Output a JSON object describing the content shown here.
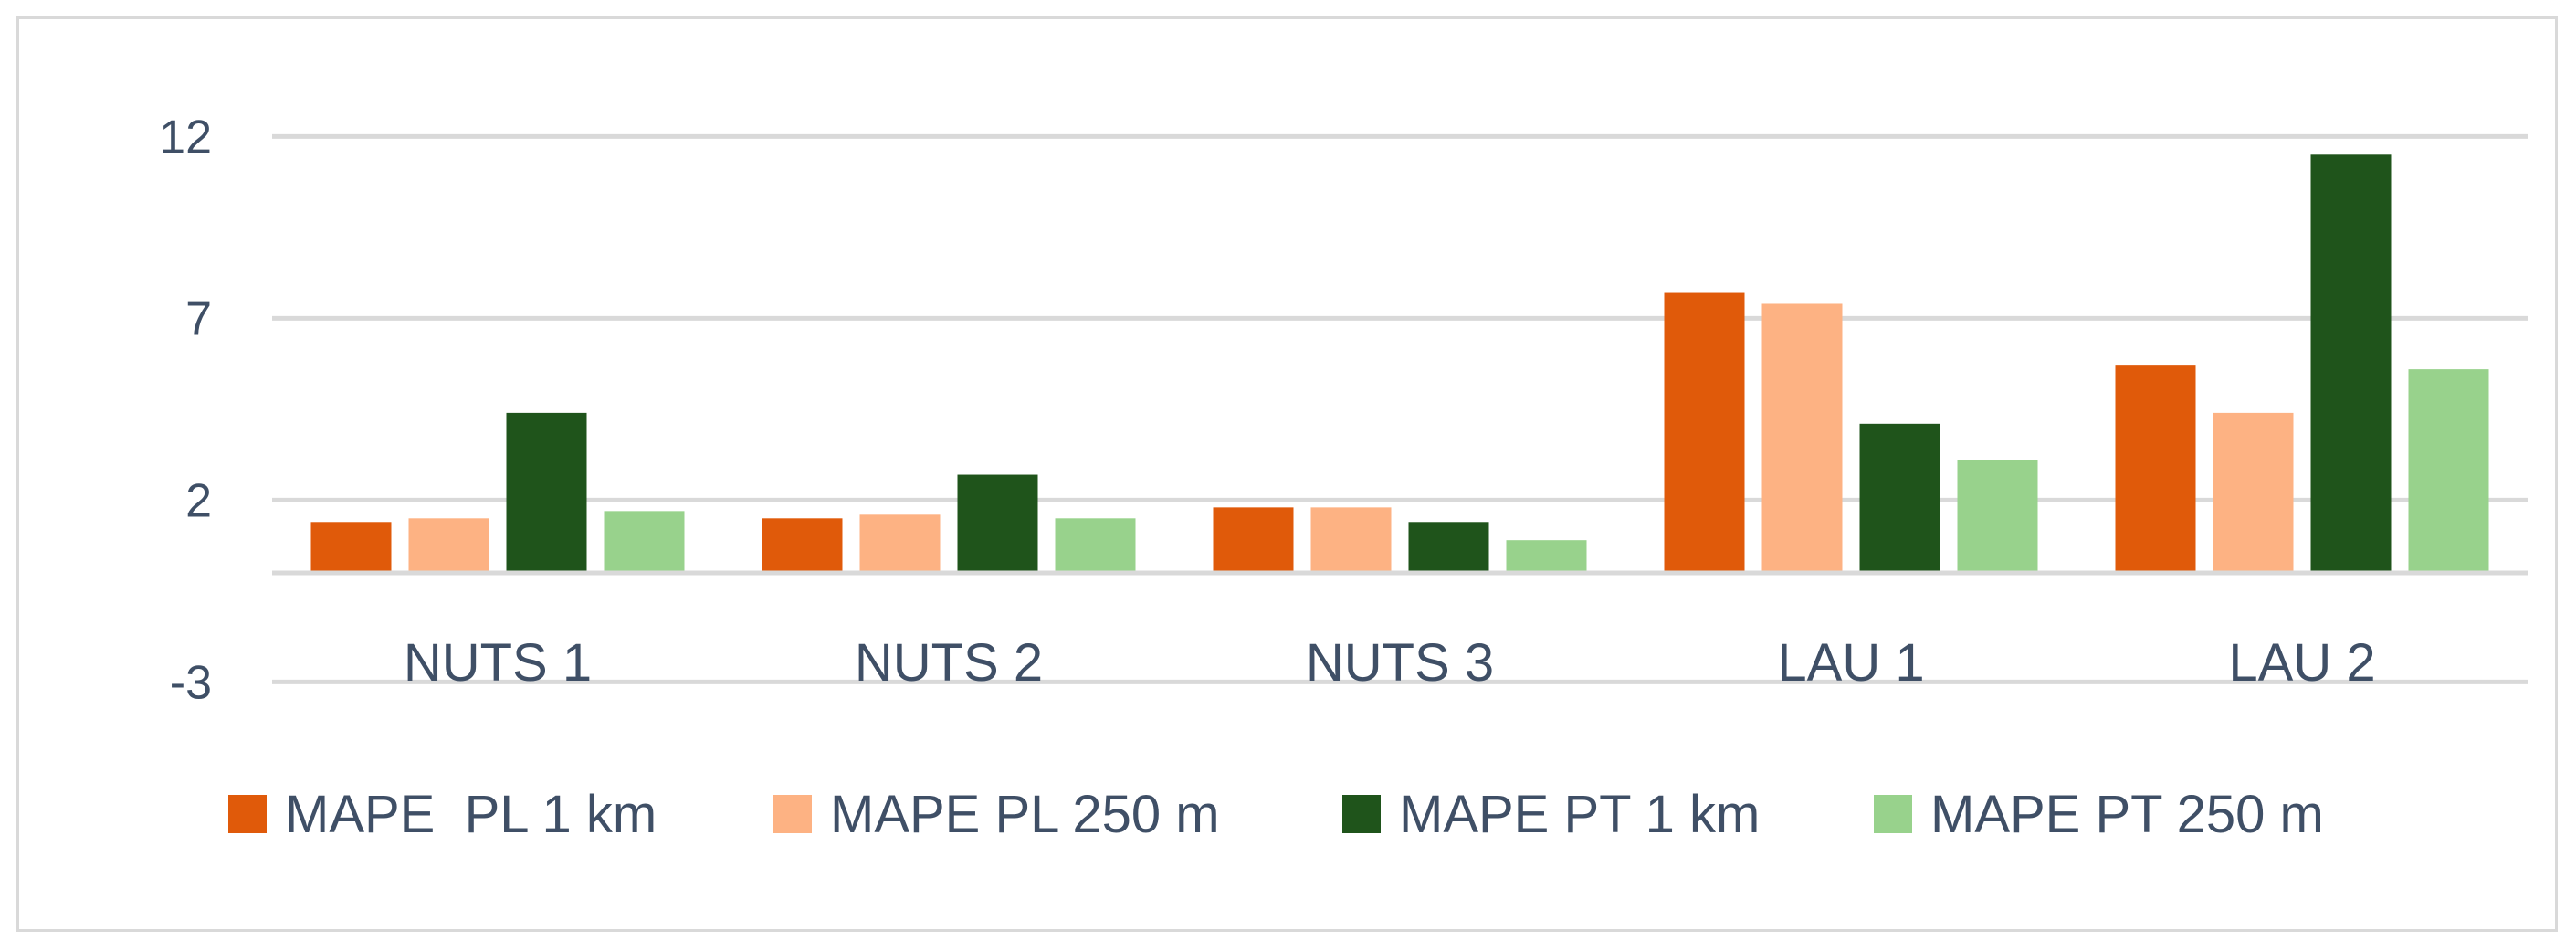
{
  "chart_data": {
    "type": "bar",
    "title": "",
    "xlabel": "",
    "ylabel": "",
    "ylim": [
      -3,
      14
    ],
    "yticks": [
      12,
      7,
      2,
      -3
    ],
    "categories": [
      "NUTS 1",
      "NUTS 2",
      "NUTS 3",
      "LAU 1",
      "LAU 2"
    ],
    "series": [
      {
        "name": "MAPE  PL 1 km",
        "color": "#e05a0a",
        "values": [
          1.4,
          1.5,
          1.8,
          7.7,
          5.7
        ]
      },
      {
        "name": "MAPE PL 250 m",
        "color": "#fdb283",
        "values": [
          1.5,
          1.6,
          1.8,
          7.4,
          4.4
        ]
      },
      {
        "name": "MAPE PT 1 km",
        "color": "#1f541b",
        "values": [
          4.4,
          2.7,
          1.4,
          4.1,
          11.5
        ]
      },
      {
        "name": "MAPE PT 250 m",
        "color": "#98d28c",
        "values": [
          1.7,
          1.5,
          0.9,
          3.1,
          5.6
        ]
      }
    ],
    "grid": true,
    "legend_position": "bottom"
  }
}
